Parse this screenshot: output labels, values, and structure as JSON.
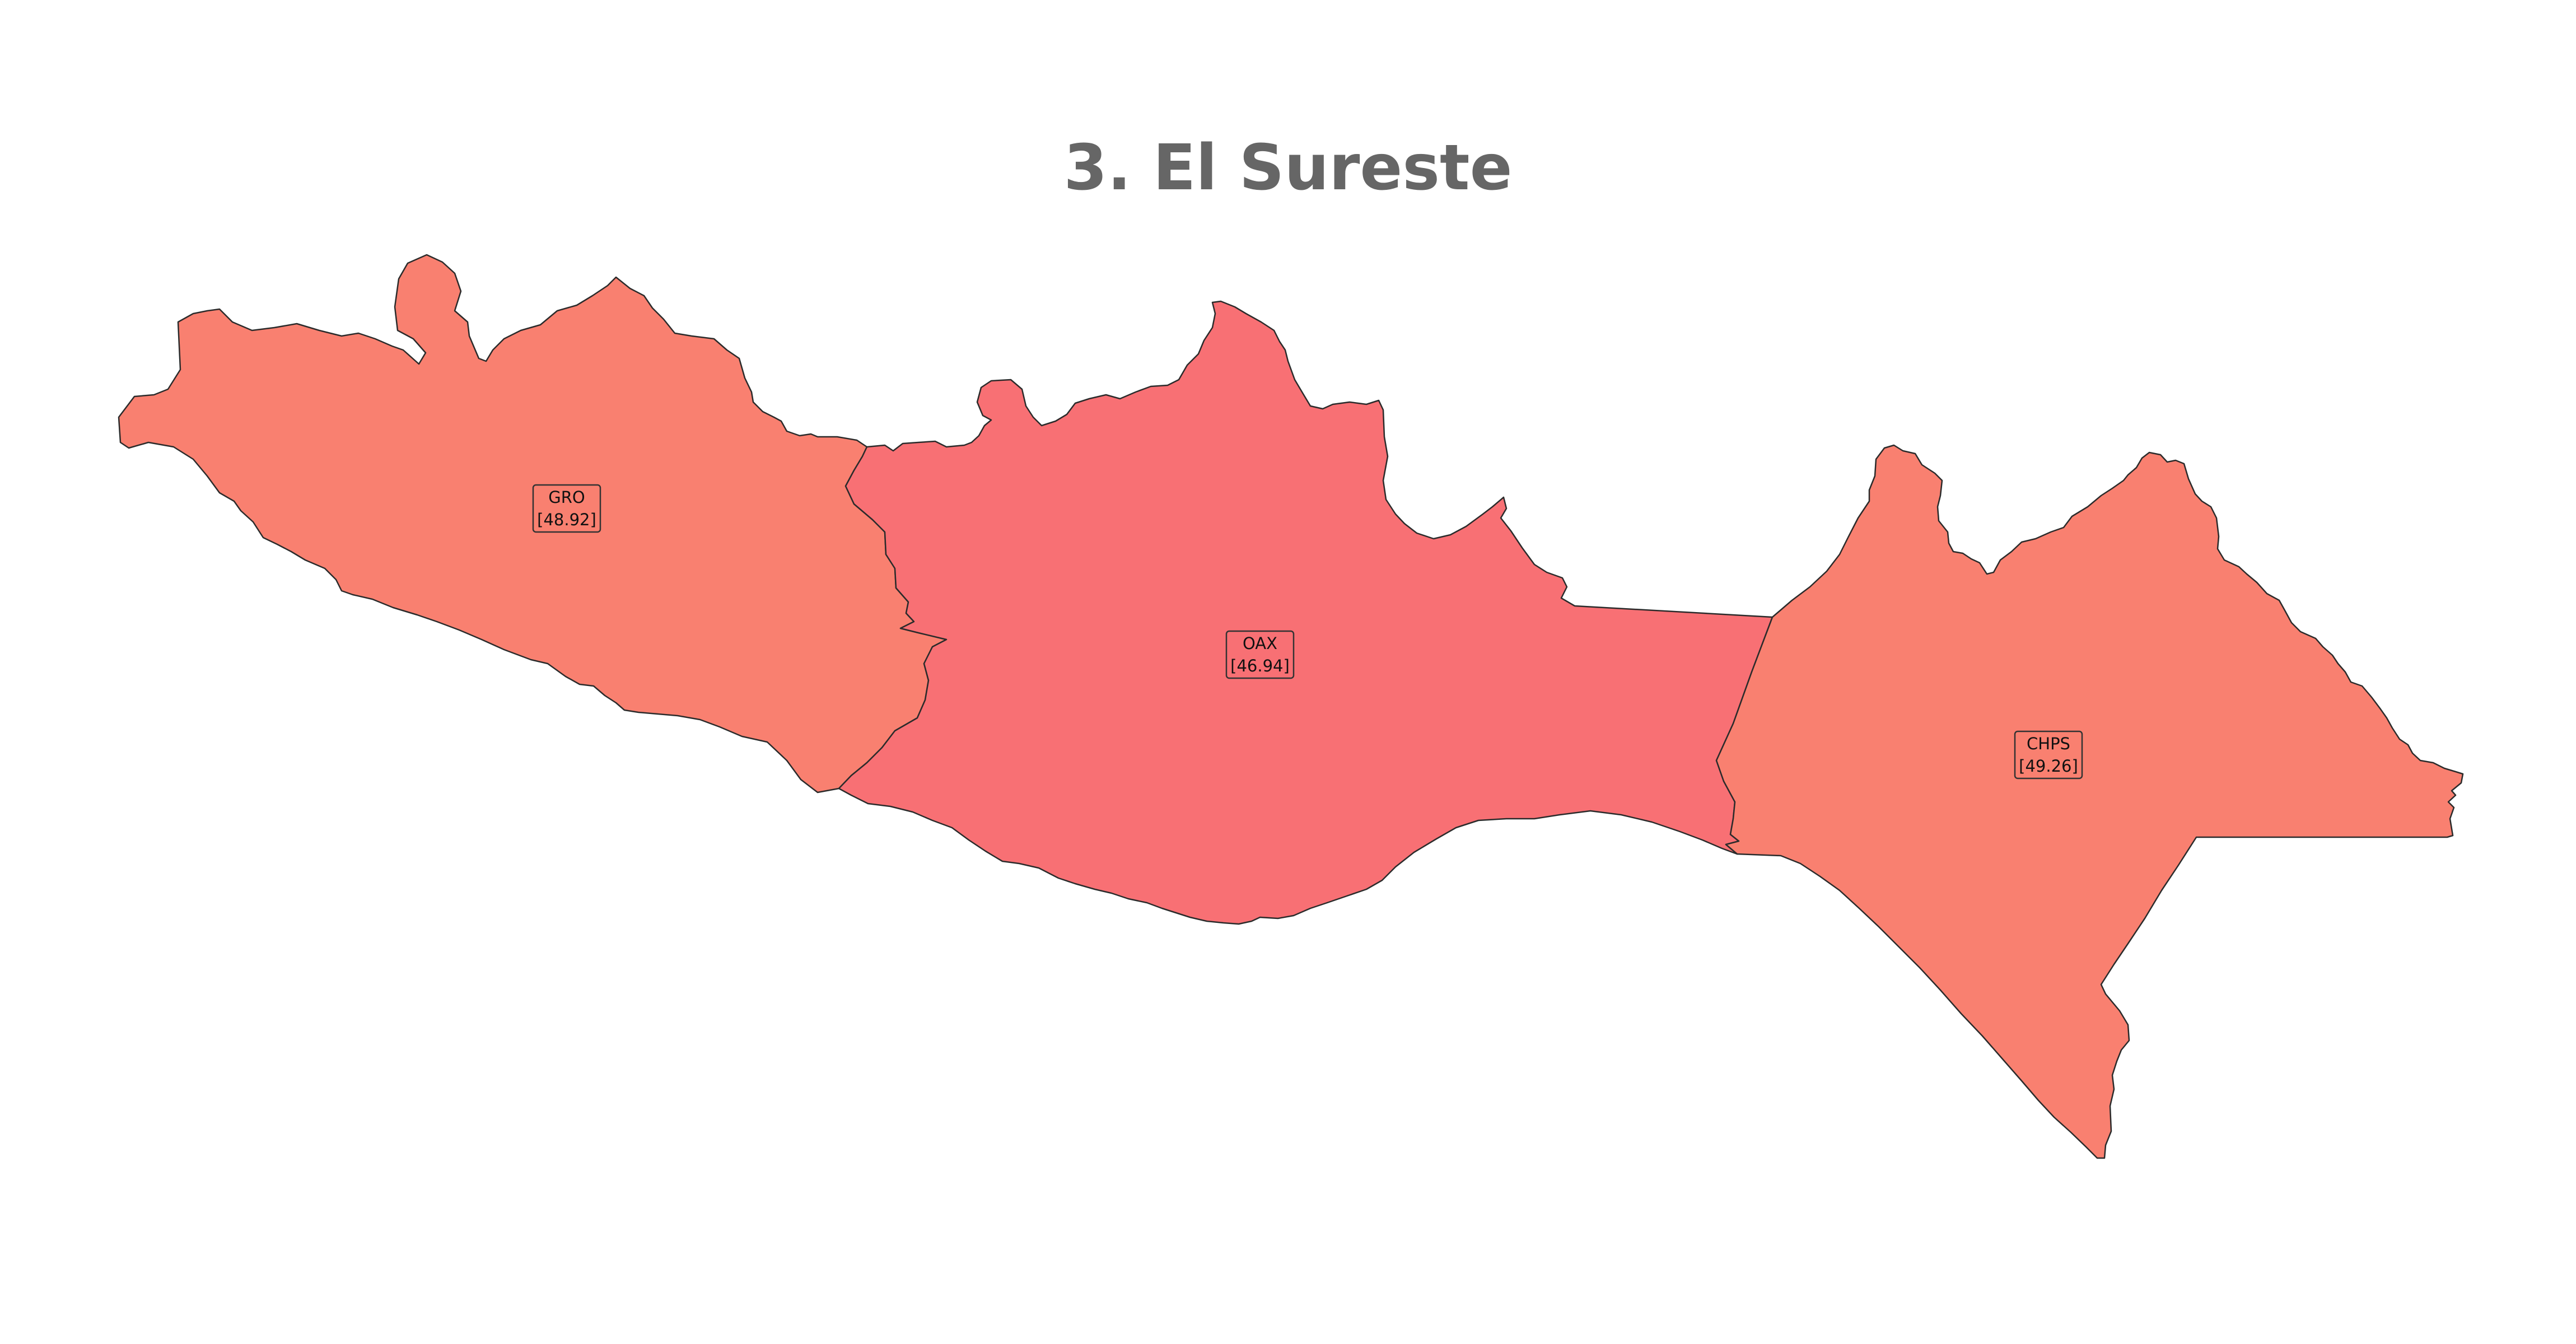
{
  "title": "3. El Sureste",
  "colors": {
    "fill_GRO": "#F98070",
    "fill_OAX": "#F87074",
    "fill_CHPS": "#F98070",
    "border": "#2b2b2b",
    "title": "#666666",
    "background": "#ffffff"
  },
  "states": [
    {
      "code": "GRO",
      "value": "[48.92]"
    },
    {
      "code": "OAX",
      "value": "[46.94]"
    },
    {
      "code": "CHPS",
      "value": "[49.26]"
    }
  ]
}
